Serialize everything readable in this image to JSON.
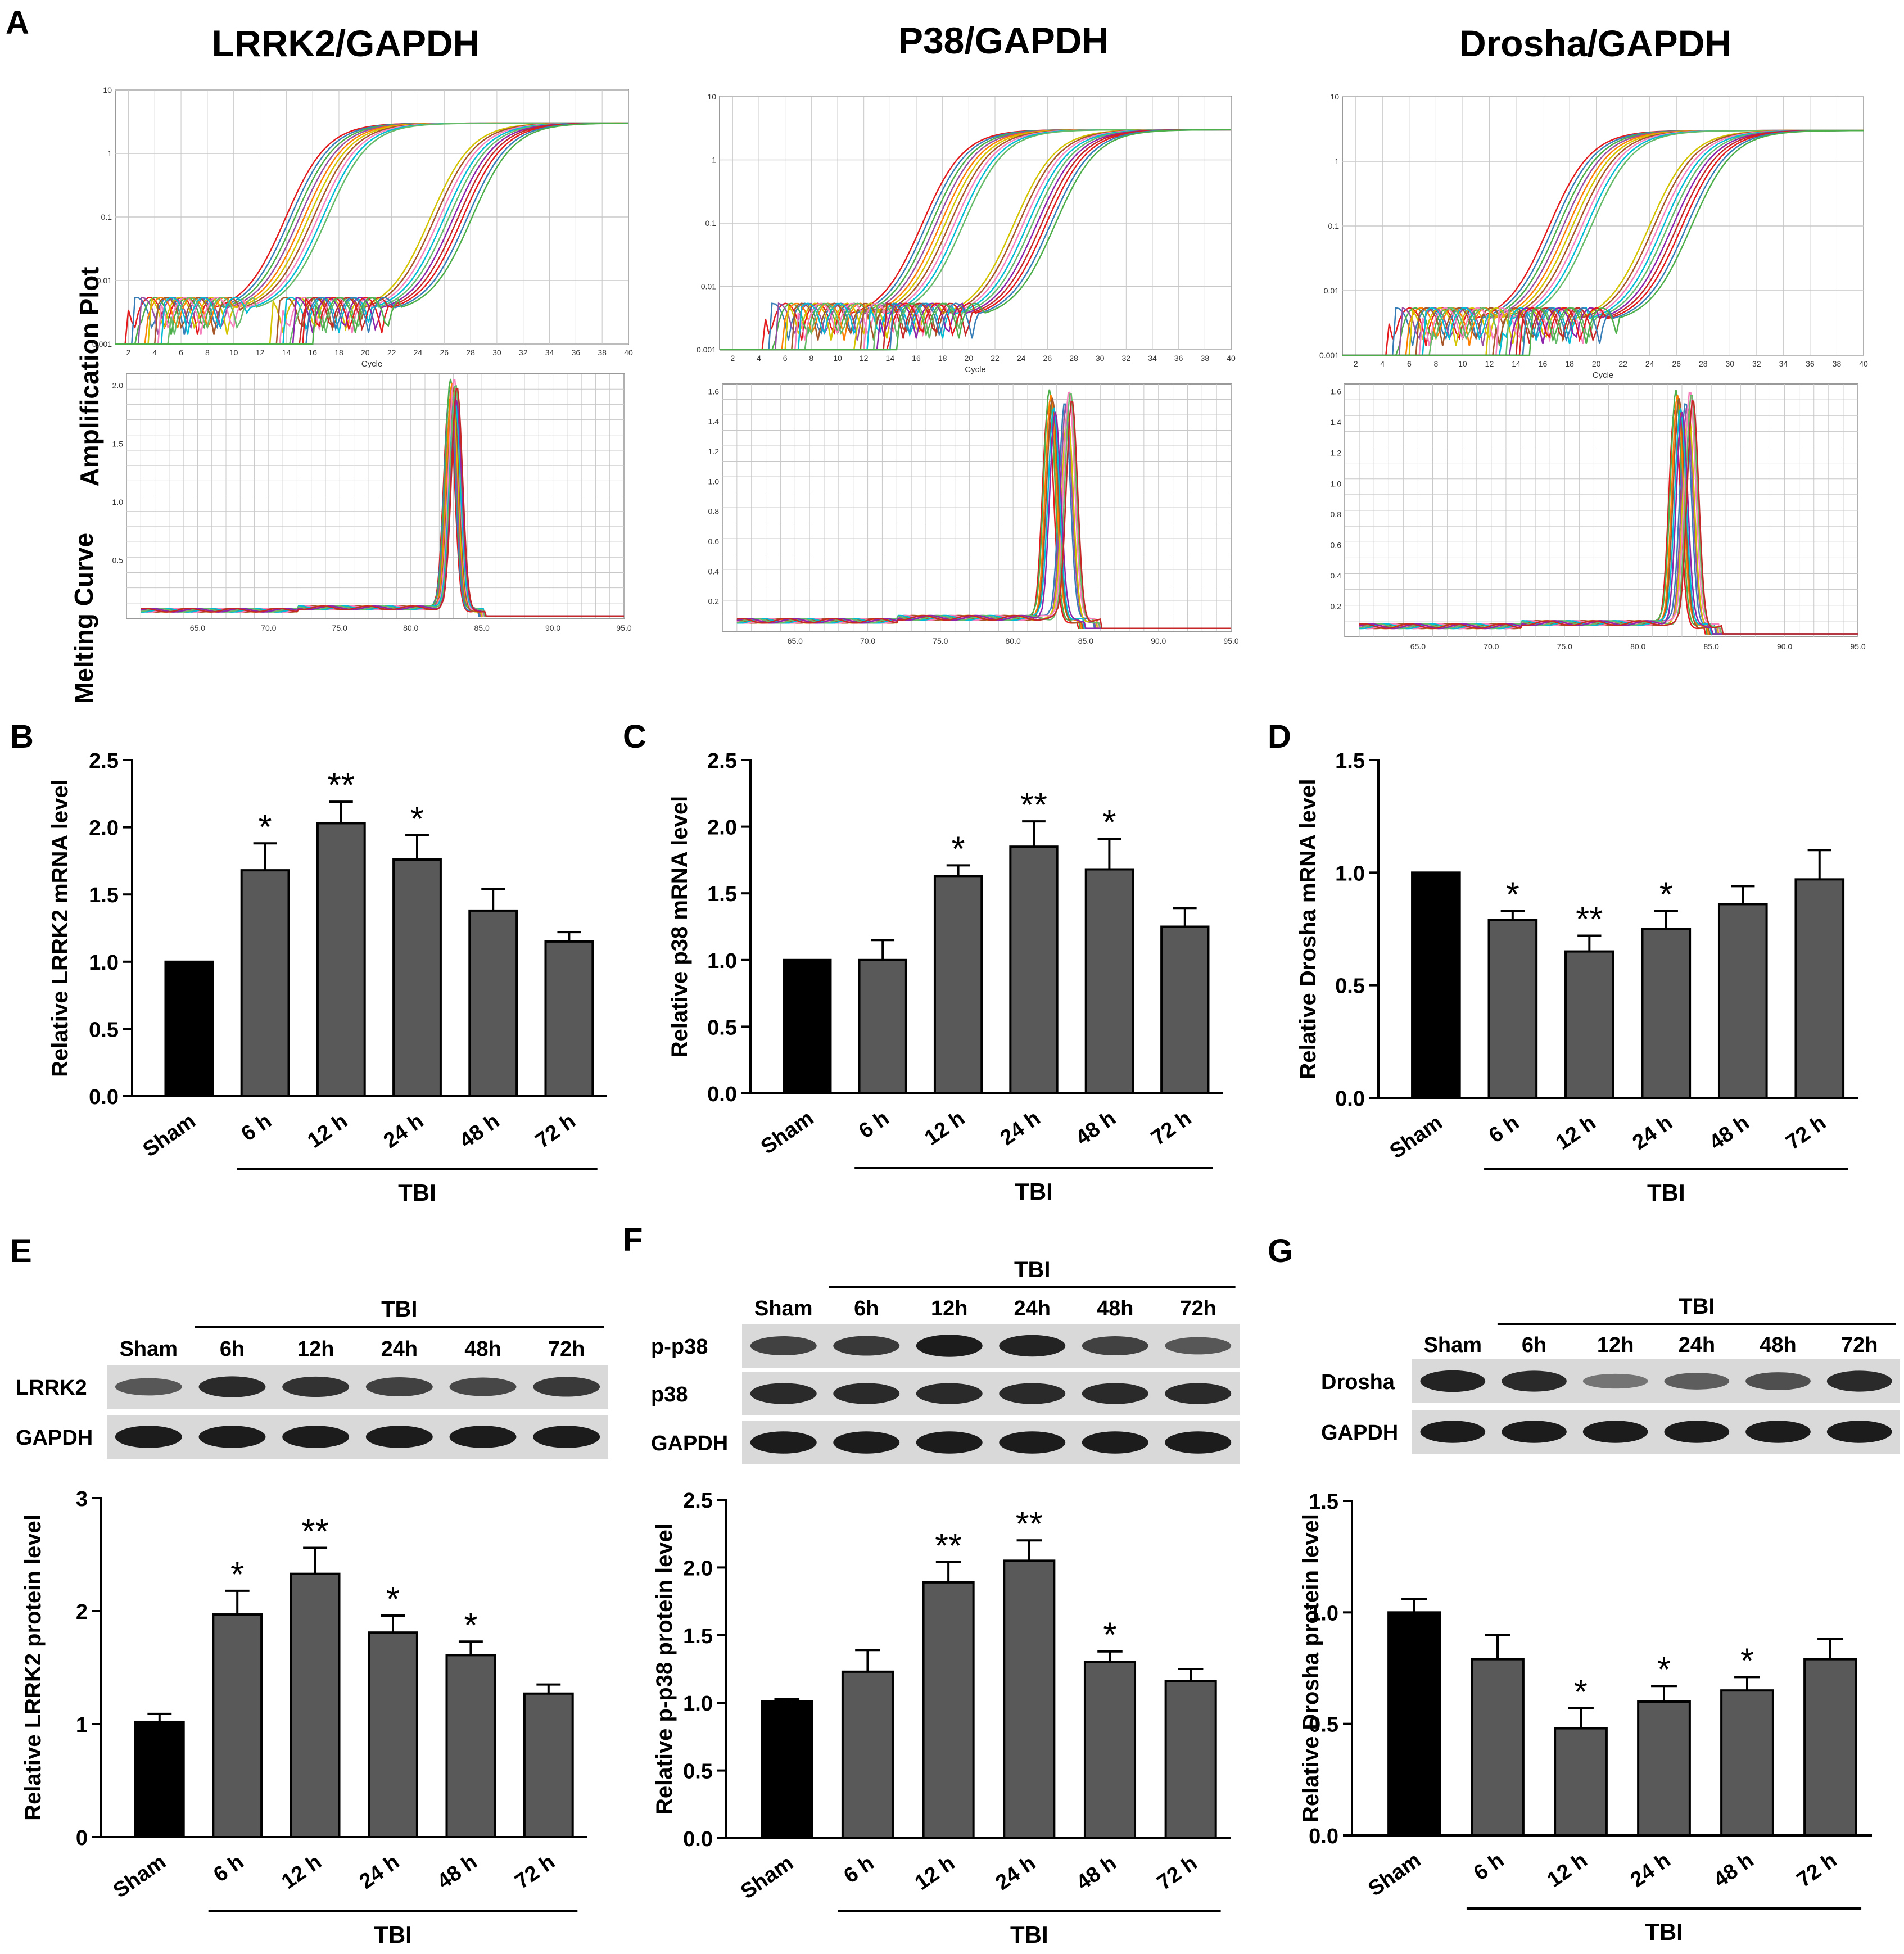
{
  "figure": {
    "panel_letters": {
      "A": "A",
      "B": "B",
      "C": "C",
      "D": "D",
      "E": "E",
      "F": "F",
      "G": "G"
    }
  },
  "chart_data": [
    {
      "id": "A",
      "type": "line",
      "row_labels": {
        "amp": "Amplification Plot",
        "melt": "Melting Curve"
      },
      "panels": [
        {
          "title": "LRRK2/GAPDH",
          "amp": {
            "xlabel": "Cycle",
            "xticks": [
              "2",
              "4",
              "6",
              "8",
              "10",
              "12",
              "14",
              "16",
              "18",
              "20",
              "22",
              "24",
              "26",
              "28",
              "30",
              "32",
              "34",
              "36",
              "38",
              "40"
            ],
            "yticks": [
              "0.001",
              "0.01",
              "0.1",
              "1",
              "10"
            ],
            "ylim": [
              0.001,
              10
            ],
            "xlim": [
              1,
              40
            ],
            "ct": [
              11.5,
              22.5
            ]
          },
          "melt": {
            "xticks": [
              "65.0",
              "70.0",
              "75.0",
              "80.0",
              "85.0",
              "90.0",
              "95.0"
            ],
            "yticks": [
              "0.5",
              "1.0",
              "1.5",
              "2.0"
            ],
            "xlim": [
              60,
              95
            ],
            "ylim": [
              0,
              2.1
            ],
            "peaks": [
              83.0
            ],
            "peak_height": 2.0
          }
        },
        {
          "title": "P38/GAPDH",
          "amp": {
            "xlabel": "Cycle",
            "xticks": [
              "2",
              "4",
              "6",
              "8",
              "10",
              "12",
              "14",
              "16",
              "18",
              "20",
              "22",
              "24",
              "26",
              "28",
              "30",
              "32",
              "34",
              "36",
              "38",
              "40"
            ],
            "yticks": [
              "0.001",
              "0.01",
              "0.1",
              "1",
              "10"
            ],
            "ylim": [
              0.001,
              10
            ],
            "xlim": [
              1,
              40
            ],
            "ct": [
              14.0,
              21.0
            ]
          },
          "melt": {
            "xticks": [
              "65.0",
              "70.0",
              "75.0",
              "80.0",
              "85.0",
              "90.0",
              "95.0"
            ],
            "yticks": [
              "0.2",
              "0.4",
              "0.6",
              "0.8",
              "1.0",
              "1.2",
              "1.4",
              "1.6"
            ],
            "xlim": [
              60,
              95
            ],
            "ylim": [
              0,
              1.65
            ],
            "peaks": [
              82.7,
              83.8
            ],
            "peak_height": 1.55
          }
        },
        {
          "title": "Drosha/GAPDH",
          "amp": {
            "xlabel": "Cycle",
            "xticks": [
              "2",
              "4",
              "6",
              "8",
              "10",
              "12",
              "14",
              "16",
              "18",
              "20",
              "22",
              "24",
              "26",
              "28",
              "30",
              "32",
              "34",
              "36",
              "38",
              "40"
            ],
            "yticks": [
              "0.001",
              "0.01",
              "0.1",
              "1",
              "10"
            ],
            "ylim": [
              0.001,
              10
            ],
            "xlim": [
              1,
              40
            ],
            "ct": [
              14.0,
              21.5
            ]
          },
          "melt": {
            "xticks": [
              "65.0",
              "70.0",
              "75.0",
              "80.0",
              "85.0",
              "90.0",
              "95.0"
            ],
            "yticks": [
              "0.2",
              "0.4",
              "0.6",
              "0.8",
              "1.0",
              "1.2",
              "1.4",
              "1.6"
            ],
            "xlim": [
              60,
              95
            ],
            "ylim": [
              0,
              1.65
            ],
            "peaks": [
              82.8,
              83.5
            ],
            "peak_height": 1.55
          }
        }
      ]
    },
    {
      "id": "B",
      "type": "bar",
      "ylabel": "Relative LRRK2 mRNA level",
      "categories": [
        "Sham",
        "6 h",
        "12 h",
        "24 h",
        "48 h",
        "72 h"
      ],
      "values": [
        1.0,
        1.68,
        2.03,
        1.76,
        1.38,
        1.15
      ],
      "errors": [
        0,
        0.2,
        0.16,
        0.18,
        0.16,
        0.07
      ],
      "sig": [
        "",
        "*",
        "**",
        "*",
        "",
        ""
      ],
      "ylim": [
        0,
        2.5
      ],
      "yticks": [
        "0.0",
        "0.5",
        "1.0",
        "1.5",
        "2.0",
        "2.5"
      ],
      "group_label": "TBI"
    },
    {
      "id": "C",
      "type": "bar",
      "ylabel": "Relative p38 mRNA level",
      "categories": [
        "Sham",
        "6 h",
        "12 h",
        "24 h",
        "48 h",
        "72 h"
      ],
      "values": [
        1.0,
        1.0,
        1.63,
        1.85,
        1.68,
        1.25
      ],
      "errors": [
        0,
        0.15,
        0.08,
        0.19,
        0.23,
        0.14
      ],
      "sig": [
        "",
        "",
        "*",
        "**",
        "*",
        ""
      ],
      "ylim": [
        0,
        2.5
      ],
      "yticks": [
        "0.0",
        "0.5",
        "1.0",
        "1.5",
        "2.0",
        "2.5"
      ],
      "group_label": "TBI"
    },
    {
      "id": "D",
      "type": "bar",
      "ylabel": "Relative Drosha mRNA level",
      "categories": [
        "Sham",
        "6 h",
        "12 h",
        "24 h",
        "48 h",
        "72 h"
      ],
      "values": [
        1.0,
        0.79,
        0.65,
        0.75,
        0.86,
        0.97
      ],
      "errors": [
        0,
        0.04,
        0.07,
        0.08,
        0.08,
        0.13
      ],
      "sig": [
        "",
        "*",
        "**",
        "*",
        "",
        ""
      ],
      "ylim": [
        0,
        1.5
      ],
      "yticks": [
        "0.0",
        "0.5",
        "1.0",
        "1.5"
      ],
      "group_label": "TBI"
    },
    {
      "id": "E",
      "type": "bar",
      "ylabel": "Relative LRRK2 protein level",
      "categories": [
        "Sham",
        "6 h",
        "12 h",
        "24 h",
        "48 h",
        "72 h"
      ],
      "values": [
        1.02,
        1.97,
        2.33,
        1.81,
        1.61,
        1.27
      ],
      "errors": [
        0.07,
        0.21,
        0.23,
        0.15,
        0.12,
        0.08
      ],
      "sig": [
        "",
        "*",
        "**",
        "*",
        "*",
        ""
      ],
      "ylim": [
        0,
        3
      ],
      "yticks": [
        "0",
        "1",
        "2",
        "3"
      ],
      "group_label": "TBI",
      "blot": {
        "group_label": "TBI",
        "lanes": [
          "Sham",
          "6h",
          "12h",
          "24h",
          "48h",
          "72h"
        ],
        "rows": [
          {
            "label": "LRRK2",
            "intensity": [
              0.55,
              0.85,
              0.8,
              0.7,
              0.65,
              0.75
            ]
          },
          {
            "label": "GAPDH",
            "intensity": [
              0.95,
              0.95,
              0.95,
              0.95,
              0.95,
              0.95
            ]
          }
        ]
      }
    },
    {
      "id": "F",
      "type": "bar",
      "ylabel": "Relative p-p38 protein level",
      "categories": [
        "Sham",
        "6 h",
        "12 h",
        "24 h",
        "48 h",
        "72 h"
      ],
      "values": [
        1.01,
        1.23,
        1.89,
        2.05,
        1.3,
        1.16
      ],
      "errors": [
        0.02,
        0.16,
        0.15,
        0.15,
        0.08,
        0.09
      ],
      "sig": [
        "",
        "",
        "**",
        "**",
        "*",
        ""
      ],
      "ylim": [
        0,
        2.5
      ],
      "yticks": [
        "0.0",
        "0.5",
        "1.0",
        "1.5",
        "2.0",
        "2.5"
      ],
      "group_label": "TBI",
      "blot": {
        "group_label": "TBI",
        "lanes": [
          "Sham",
          "6h",
          "12h",
          "24h",
          "48h",
          "72h"
        ],
        "rows": [
          {
            "label": "p-p38",
            "intensity": [
              0.7,
              0.75,
              0.95,
              0.9,
              0.7,
              0.55
            ]
          },
          {
            "label": "p38",
            "intensity": [
              0.85,
              0.85,
              0.85,
              0.85,
              0.85,
              0.85
            ]
          },
          {
            "label": "GAPDH",
            "intensity": [
              0.95,
              0.95,
              0.95,
              0.95,
              0.95,
              0.95
            ]
          }
        ]
      }
    },
    {
      "id": "G",
      "type": "bar",
      "ylabel": "Relative Drosha protein level",
      "categories": [
        "Sham",
        "6 h",
        "12 h",
        "24 h",
        "48 h",
        "72 h"
      ],
      "values": [
        1.0,
        0.79,
        0.48,
        0.6,
        0.65,
        0.79
      ],
      "errors": [
        0.06,
        0.11,
        0.09,
        0.07,
        0.06,
        0.09
      ],
      "sig": [
        "",
        "",
        "*",
        "*",
        "*",
        ""
      ],
      "ylim": [
        0,
        1.5
      ],
      "yticks": [
        "0.0",
        "0.5",
        "1.0",
        "1.5"
      ],
      "group_label": "TBI",
      "blot": {
        "group_label": "TBI",
        "lanes": [
          "Sham",
          "6h",
          "12h",
          "24h",
          "48h",
          "72h"
        ],
        "rows": [
          {
            "label": "Drosha",
            "intensity": [
              0.9,
              0.85,
              0.35,
              0.5,
              0.6,
              0.85
            ]
          },
          {
            "label": "GAPDH",
            "intensity": [
              0.95,
              0.95,
              0.95,
              0.95,
              0.95,
              0.95
            ]
          }
        ]
      }
    }
  ],
  "colors": {
    "sham": "#000000",
    "tbi": "#595959",
    "axis": "#000000",
    "grid": "#c8c8c8",
    "blot_bg": "#d9d9d9",
    "band": "#141414"
  }
}
